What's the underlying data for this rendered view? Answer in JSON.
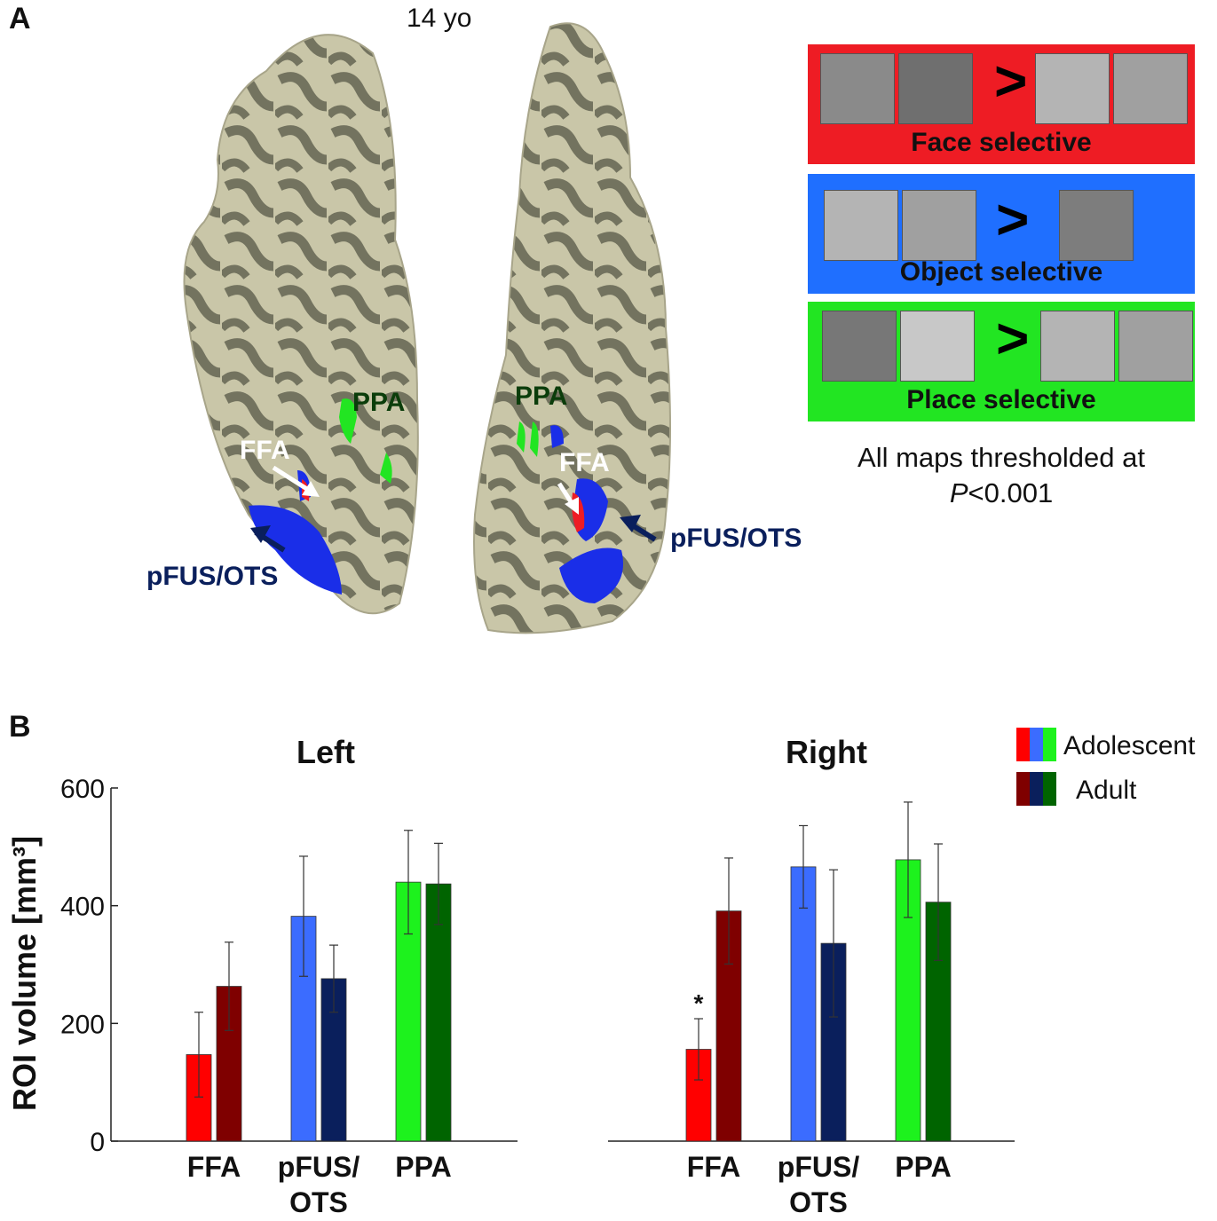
{
  "panel_a": {
    "letter": "A",
    "age_label": "14 yo",
    "brain_labels": {
      "left_ppa": "PPA",
      "left_ffa": "FFA",
      "left_pfus": "pFUS/OTS",
      "right_ppa": "PPA",
      "right_ffa": "FFA",
      "right_pfus": "pFUS/OTS"
    },
    "legend": [
      {
        "label": "Face selective",
        "color": "#ee1c24",
        "symbol": ">"
      },
      {
        "label": "Object selective",
        "color": "#1f6fff",
        "symbol": ">"
      },
      {
        "label": "Place selective",
        "color": "#22e522",
        "symbol": ">"
      }
    ],
    "threshold_line1": "All maps thresholded at",
    "threshold_p": "P",
    "threshold_rest": "<0.001"
  },
  "panel_b": {
    "letter": "B"
  },
  "chart_data": {
    "type": "bar",
    "ylabel": "ROI volume [mm³]",
    "ylim": [
      0,
      600
    ],
    "yticks": [
      0,
      200,
      400,
      600
    ],
    "legend": {
      "placement": "top-right",
      "entries": [
        {
          "name": "Adolescent",
          "colors": [
            "#ff0000",
            "#3b6cff",
            "#1df21d"
          ]
        },
        {
          "name": "Adult",
          "colors": [
            "#7f0000",
            "#0a1f5c",
            "#006400"
          ]
        }
      ]
    },
    "panels": [
      {
        "title": "Left",
        "categories": [
          {
            "label_lines": [
              "FFA"
            ],
            "colors": [
              "#ff0000",
              "#7f0000"
            ],
            "values": [
              147,
              263
            ],
            "errors": [
              72,
              75
            ]
          },
          {
            "label_lines": [
              "pFUS/",
              "OTS"
            ],
            "colors": [
              "#3b6cff",
              "#0a1f5c"
            ],
            "values": [
              382,
              276
            ],
            "errors": [
              102,
              57
            ]
          },
          {
            "label_lines": [
              "PPA"
            ],
            "colors": [
              "#1df21d",
              "#006400"
            ],
            "values": [
              440,
              437
            ],
            "errors": [
              88,
              69
            ]
          }
        ]
      },
      {
        "title": "Right",
        "categories": [
          {
            "label_lines": [
              "FFA"
            ],
            "colors": [
              "#ff0000",
              "#7f0000"
            ],
            "values": [
              156,
              391
            ],
            "errors": [
              52,
              90
            ],
            "annotation": "*"
          },
          {
            "label_lines": [
              "pFUS/",
              "OTS"
            ],
            "colors": [
              "#3b6cff",
              "#0a1f5c"
            ],
            "values": [
              466,
              336
            ],
            "errors": [
              70,
              125
            ]
          },
          {
            "label_lines": [
              "PPA"
            ],
            "colors": [
              "#1df21d",
              "#006400"
            ],
            "values": [
              478,
              406
            ],
            "errors": [
              98,
              99
            ]
          }
        ]
      }
    ]
  }
}
